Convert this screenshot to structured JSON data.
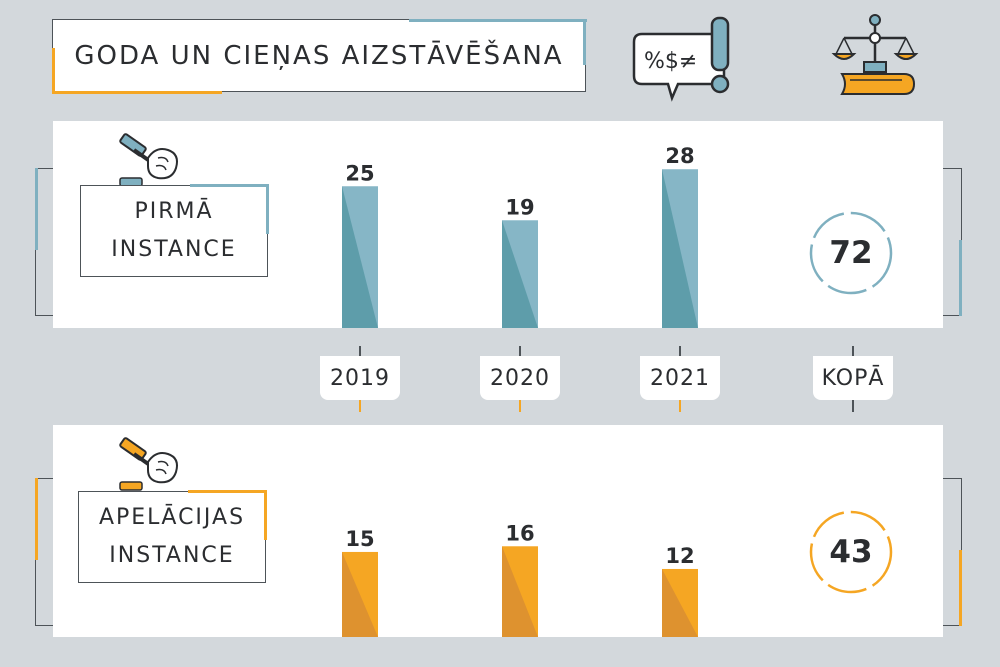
{
  "title": "GODA UN CIEŅAS AIZSTĀVĒŠANA",
  "icons": {
    "speech": "speech-bubble-symbols-icon",
    "justice": "scales-of-justice-icon",
    "gavel": "gavel-hand-icon"
  },
  "symbols_text": "%$≠",
  "columns": [
    "2019",
    "2020",
    "2021",
    "KOPĀ"
  ],
  "colors": {
    "blue": "#86b6c6",
    "blue_dark": "#5e9daa",
    "orange": "#f5a623",
    "orange_dark": "#de922f",
    "text": "#2b2d30",
    "bg": "#d3d8dc"
  },
  "chart_data": [
    {
      "type": "bar",
      "name": "PIRMĀ INSTANCE",
      "label_lines": [
        "PIRMĀ",
        "INSTANCE"
      ],
      "categories": [
        "2019",
        "2020",
        "2021"
      ],
      "values": [
        25,
        19,
        28
      ],
      "total_label": "KOPĀ",
      "total": 72,
      "color": "#86b6c6"
    },
    {
      "type": "bar",
      "name": "APELĀCIJAS INSTANCE",
      "label_lines": [
        "APELĀCIJAS",
        "INSTANCE"
      ],
      "categories": [
        "2019",
        "2020",
        "2021"
      ],
      "values": [
        15,
        16,
        12
      ],
      "total_label": "KOPĀ",
      "total": 43,
      "color": "#f5a623"
    }
  ]
}
